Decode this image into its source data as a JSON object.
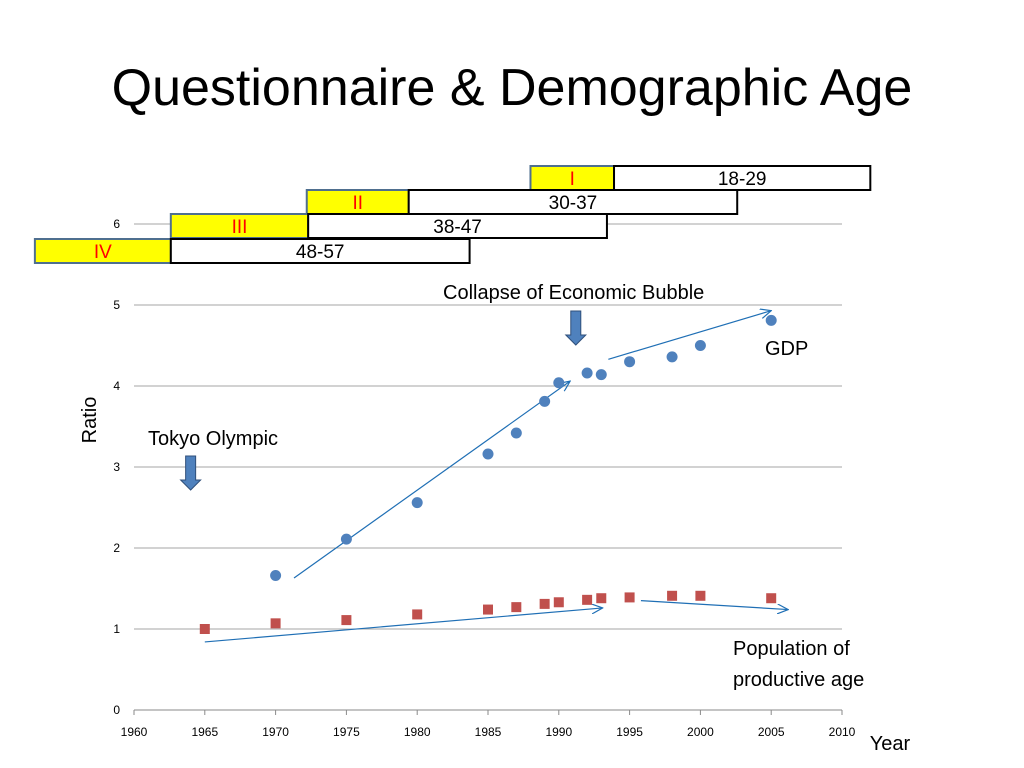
{
  "title": "Questionnaire & Demographic Age",
  "colors": {
    "gdp": "#4f81bd",
    "population": "#c0504d",
    "trend_arrow": "#1f6fb5",
    "down_arrow": "#4f81bd",
    "group_fill": "#ffff00",
    "group_text": "#ff0000",
    "group_border": "#4f6f8f",
    "gridline": "#a6a6a6"
  },
  "annotations": {
    "tokyo_olympic": "Tokyo Olympic",
    "bubble_collapse": "Collapse of Economic Bubble",
    "gdp": "GDP",
    "population_line1": "Population of",
    "population_line2": "productive age"
  },
  "age_groups": [
    {
      "roman": "I",
      "range": "18-29",
      "start": 1988,
      "split": 1993.9,
      "end": 2012
    },
    {
      "roman": "II",
      "range": "30-37",
      "start": 1972.2,
      "split": 1979.4,
      "end": 2002.6
    },
    {
      "roman": "III",
      "range": "38-47",
      "start": 1962.6,
      "split": 1972.3,
      "end": 1993.4
    },
    {
      "roman": "IV",
      "range": "48-57",
      "start": 1953,
      "split": 1962.6,
      "end": 1983.7
    }
  ],
  "chart_data": {
    "type": "scatter",
    "xlabel": "Year",
    "ylabel": "Ratio",
    "xlim": [
      1960,
      2010
    ],
    "ylim": [
      0,
      6
    ],
    "x_ticks": [
      1960,
      1965,
      1970,
      1975,
      1980,
      1985,
      1990,
      1995,
      2000,
      2005,
      2010
    ],
    "y_ticks": [
      0,
      1,
      2,
      3,
      4,
      5,
      6
    ],
    "grid": true,
    "series": [
      {
        "name": "GDP",
        "marker": "circle",
        "points": [
          [
            1970,
            1.66
          ],
          [
            1975,
            2.11
          ],
          [
            1980,
            2.56
          ],
          [
            1985,
            3.16
          ],
          [
            1987,
            3.42
          ],
          [
            1989,
            3.81
          ],
          [
            1990,
            4.04
          ],
          [
            1992,
            4.16
          ],
          [
            1993,
            4.14
          ],
          [
            1995,
            4.3
          ],
          [
            1998,
            4.36
          ],
          [
            2000,
            4.5
          ],
          [
            2005,
            4.81
          ]
        ]
      },
      {
        "name": "Population of productive age",
        "marker": "square",
        "points": [
          [
            1965,
            1.0
          ],
          [
            1970,
            1.07
          ],
          [
            1975,
            1.11
          ],
          [
            1980,
            1.18
          ],
          [
            1985,
            1.24
          ],
          [
            1987,
            1.27
          ],
          [
            1989,
            1.31
          ],
          [
            1990,
            1.33
          ],
          [
            1992,
            1.36
          ],
          [
            1993,
            1.38
          ],
          [
            1995,
            1.39
          ],
          [
            1998,
            1.41
          ],
          [
            2000,
            1.41
          ],
          [
            2005,
            1.38
          ]
        ]
      }
    ],
    "trend_arrows": [
      {
        "from": [
          1971.3,
          1.63
        ],
        "to": [
          1990.8,
          4.06
        ]
      },
      {
        "from": [
          1993.5,
          4.33
        ],
        "to": [
          2005,
          4.93
        ]
      },
      {
        "from": [
          1965,
          0.84
        ],
        "to": [
          1993.1,
          1.26
        ]
      },
      {
        "from": [
          1995.8,
          1.35
        ],
        "to": [
          2006.2,
          1.24
        ]
      }
    ],
    "down_arrows": [
      {
        "label_ref": "tokyo_olympic",
        "x": 1964
      },
      {
        "label_ref": "bubble_collapse",
        "x": 1991.2
      }
    ]
  }
}
